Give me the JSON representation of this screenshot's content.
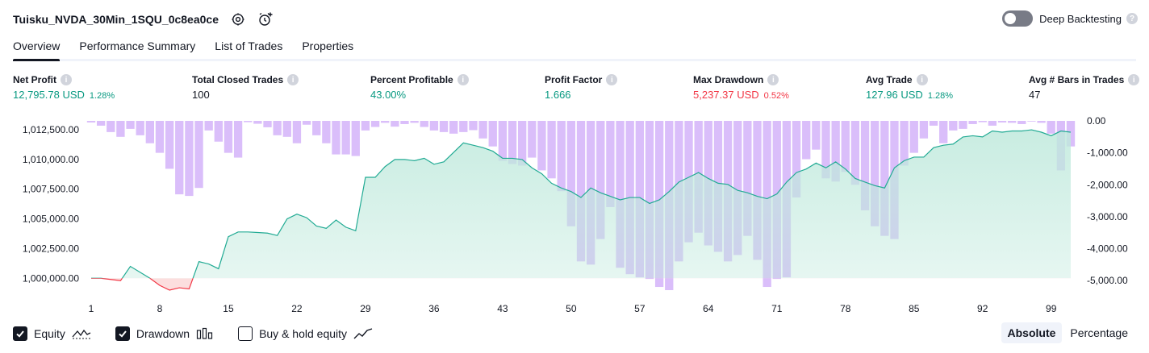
{
  "header": {
    "strategy_name": "Tuisku_NVDA_30Min_1SQU_0c8ea0ce",
    "settings_icon": "gear-icon",
    "alert_icon": "alarm-clock-plus-icon"
  },
  "deep_backtesting": {
    "label": "Deep Backtesting",
    "enabled": false
  },
  "tabs": [
    {
      "label": "Overview",
      "active": true
    },
    {
      "label": "Performance Summary",
      "active": false
    },
    {
      "label": "List of Trades",
      "active": false
    },
    {
      "label": "Properties",
      "active": false
    }
  ],
  "metrics": {
    "net_profit": {
      "label": "Net Profit",
      "value": "12,795.78 USD",
      "pct": "1.28%"
    },
    "total_closed_trades": {
      "label": "Total Closed Trades",
      "value": "100"
    },
    "percent_profitable": {
      "label": "Percent Profitable",
      "value": "43.00%"
    },
    "profit_factor": {
      "label": "Profit Factor",
      "value": "1.666"
    },
    "max_drawdown": {
      "label": "Max Drawdown",
      "value": "5,237.37 USD",
      "pct": "0.52%"
    },
    "avg_trade": {
      "label": "Avg Trade",
      "value": "127.96 USD",
      "pct": "1.28%"
    },
    "avg_bars": {
      "label": "Avg # Bars in Trades",
      "value": "47"
    }
  },
  "chart_data": {
    "type": "line",
    "x_ticks": [
      "1",
      "8",
      "15",
      "22",
      "29",
      "36",
      "43",
      "50",
      "57",
      "64",
      "71",
      "78",
      "85",
      "92",
      "99"
    ],
    "y_left_ticks": [
      "1,012,500.00",
      "1,010,000.00",
      "1,007,500.00",
      "1,005,000.00",
      "1,002,500.00",
      "1,000,000.00"
    ],
    "y_right_ticks": [
      "0.00",
      "-1,000.00",
      "-2,000.00",
      "-3,000.00",
      "-4,000.00",
      "-5,000.00"
    ],
    "ylim_left": [
      999000,
      1013250
    ],
    "ylim_right": [
      -5300,
      0
    ],
    "xlim": [
      1,
      101
    ],
    "series": [
      {
        "name": "Equity",
        "color": "#22ab94",
        "values": [
          1000000,
          1000000,
          999900,
          999800,
          1001000,
          1000500,
          1000000,
          999400,
          999000,
          999200,
          999100,
          1001400,
          1001200,
          1000800,
          1003500,
          1003900,
          1003900,
          1003850,
          1003800,
          1003600,
          1005000,
          1005400,
          1005100,
          1004400,
          1004200,
          1004900,
          1004300,
          1004000,
          1008500,
          1008500,
          1009400,
          1010000,
          1010000,
          1009900,
          1010100,
          1009600,
          1009800,
          1010600,
          1011400,
          1011200,
          1011000,
          1010700,
          1010100,
          1010100,
          1010000,
          1009300,
          1008800,
          1008000,
          1007600,
          1007300,
          1006800,
          1007600,
          1007200,
          1006900,
          1006600,
          1006800,
          1006800,
          1006300,
          1006600,
          1007300,
          1008100,
          1008500,
          1008900,
          1008400,
          1008000,
          1007900,
          1007400,
          1007200,
          1006900,
          1006700,
          1007100,
          1008100,
          1008900,
          1009200,
          1009700,
          1009300,
          1009800,
          1009200,
          1008400,
          1008100,
          1007800,
          1007600,
          1009300,
          1009900,
          1010200,
          1010200,
          1011000,
          1011200,
          1011300,
          1011900,
          1012000,
          1011900,
          1012400,
          1012300,
          1012400,
          1012400,
          1012500,
          1012300,
          1012000,
          1012400,
          1012300
        ]
      },
      {
        "name": "Drawdown",
        "color": "#d6b7fa",
        "values": [
          -50,
          -150,
          -350,
          -500,
          -250,
          -450,
          -700,
          -1000,
          -1500,
          -2300,
          -2350,
          -2100,
          -300,
          -650,
          -1000,
          -1150,
          -40,
          -90,
          -200,
          -450,
          -500,
          -700,
          -120,
          -450,
          -700,
          -1050,
          -1050,
          -1100,
          -300,
          -190,
          -60,
          -180,
          -100,
          -60,
          -190,
          -300,
          -350,
          -400,
          -350,
          -290,
          -550,
          -800,
          -1250,
          -1350,
          -1400,
          -1150,
          -1550,
          -1800,
          -2200,
          -3300,
          -4400,
          -4500,
          -3700,
          -2700,
          -4600,
          -4800,
          -4900,
          -4950,
          -5200,
          -5300,
          -4400,
          -3800,
          -3500,
          -3900,
          -4100,
          -4400,
          -4200,
          -3600,
          -4350,
          -5200,
          -4950,
          -4900,
          -2400,
          -1200,
          -900,
          -1800,
          -1900,
          -1600,
          -2000,
          -2800,
          -3300,
          -3600,
          -3700,
          -1400,
          -1000,
          -550,
          -150,
          -700,
          -300,
          -250,
          -100,
          -40,
          -150,
          -50,
          -60,
          -100,
          -20,
          -60,
          -400,
          -1550,
          -800
        ]
      }
    ],
    "legend": [
      {
        "label": "Equity",
        "checked": true,
        "icon": "equity-line-icon"
      },
      {
        "label": "Drawdown",
        "checked": true,
        "icon": "drawdown-bars-icon"
      },
      {
        "label": "Buy & hold equity",
        "checked": false,
        "icon": "buy-hold-line-icon"
      }
    ],
    "colors": {
      "equity_line": "#22ab94",
      "equity_fill": "#bfe9dc",
      "equity_neg_line": "#f23645",
      "equity_neg_fill": "#fcdada",
      "drawdown_bar": "#d6b7fa"
    },
    "grid": false,
    "legend_position": "bottom-left"
  },
  "view_mode": {
    "absolute": "Absolute",
    "percentage": "Percentage",
    "selected": "Absolute"
  }
}
